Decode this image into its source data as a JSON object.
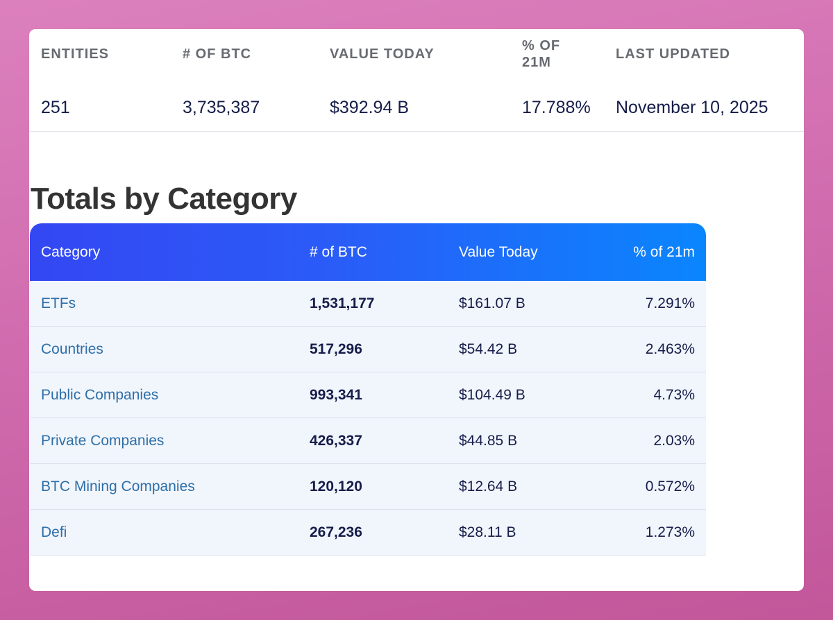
{
  "summary": {
    "columns": [
      {
        "label": "ENTITIES",
        "value": "251"
      },
      {
        "label": "# OF BTC",
        "value": "3,735,387"
      },
      {
        "label": "VALUE TODAY",
        "value": "$392.94 B"
      },
      {
        "label": "% OF 21M",
        "value": "17.788%"
      },
      {
        "label": "LAST UPDATED",
        "value": "November 10, 2025"
      }
    ]
  },
  "totals": {
    "title": "Totals by Category",
    "headers": [
      "Category",
      "# of BTC",
      "Value Today",
      "% of 21m"
    ],
    "rows": [
      {
        "category": "ETFs",
        "btc": "1,531,177",
        "value": "$161.07 B",
        "pct": "7.291%"
      },
      {
        "category": "Countries",
        "btc": "517,296",
        "value": "$54.42 B",
        "pct": "2.463%"
      },
      {
        "category": "Public Companies",
        "btc": "993,341",
        "value": "$104.49 B",
        "pct": "4.73%"
      },
      {
        "category": "Private Companies",
        "btc": "426,337",
        "value": "$44.85 B",
        "pct": "2.03%"
      },
      {
        "category": "BTC Mining Companies",
        "btc": "120,120",
        "value": "$12.64 B",
        "pct": "0.572%"
      },
      {
        "category": "Defi",
        "btc": "267,236",
        "value": "$28.11 B",
        "pct": "1.273%"
      }
    ]
  },
  "colors": {
    "header_gradient_start": "#3447f2",
    "header_gradient_end": "#0a86fd",
    "link": "#2d6fa8",
    "background": "#cf6aad"
  }
}
